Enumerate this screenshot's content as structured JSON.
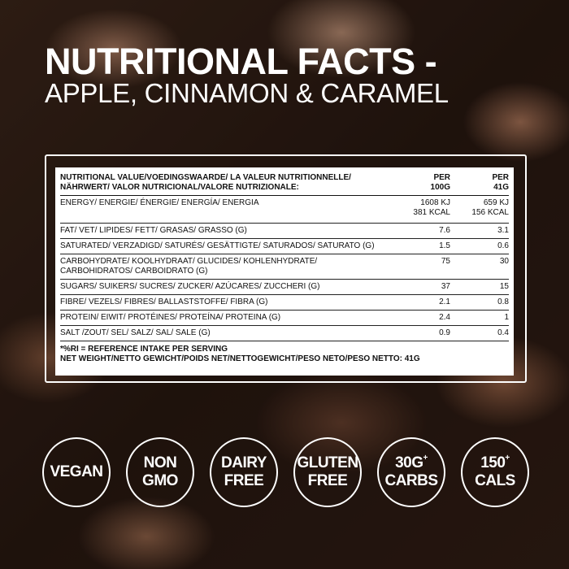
{
  "title": {
    "line1": "NUTRITIONAL FACTS -",
    "line2": "APPLE, CINNAMON & CARAMEL"
  },
  "table": {
    "header": {
      "label_1": "NUTRITIONAL VALUE/VOEDINGSWAARDE/ LA VALEUR NUTRITIONNELLE/",
      "label_2": "NÄHRWERT/ VALOR NUTRICIONAL/VALORE NUTRIZIONALE:",
      "col1_1": "PER",
      "col1_2": "100G",
      "col2_1": "PER",
      "col2_2": "41G"
    },
    "rows": [
      {
        "label": "ENERGY/ ENERGIE/ ÉNERGIE/ ENERGÍA/ ENERGIA",
        "v1": "1608 KJ",
        "v1b": "381 KCAL",
        "v2": "659 KJ",
        "v2b": "156 KCAL"
      },
      {
        "label": "FAT/ VET/ LIPIDES/ FETT/ GRASAS/ GRASSO (G)",
        "v1": "7.6",
        "v2": "3.1"
      },
      {
        "label": "SATURATED/ VERZADIGD/ SATURÉS/ GESÄTTIGTE/ SATURADOS/ SATURATO (G)",
        "v1": "1.5",
        "v2": "0.6"
      },
      {
        "label": "CARBOHYDRATE/ KOOLHYDRAAT/ GLUCIDES/ KOHLENHYDRATE/",
        "label_b": "CARBOHIDRATOS/ CARBOIDRATO (G)",
        "v1": "75",
        "v2": "30"
      },
      {
        "label": "SUGARS/ SUIKERS/ SUCRES/ ZUCKER/ AZÚCARES/ ZUCCHERI (G)",
        "v1": "37",
        "v2": "15"
      },
      {
        "label": "FIBRE/ VEZELS/ FIBRES/ BALLASTSTOFFE/ FIBRA (G)",
        "v1": "2.1",
        "v2": "0.8"
      },
      {
        "label": "PROTEIN/ EIWIT/ PROTÉINES/ PROTEÍNA/ PROTEINA (G)",
        "v1": "2.4",
        "v2": "1"
      },
      {
        "label": "SALT /ZOUT/ SEL/ SALZ/ SAL/ SALE (G)",
        "v1": "0.9",
        "v2": "0.4"
      }
    ],
    "footnote": "*%RI = REFERENCE INTAKE PER SERVING",
    "net_weight": "NET WEIGHT/NETTO GEWICHT/POIDS NET/NETTOGEWICHT/PESO NETO/PESO NETTO: 41G"
  },
  "badges": [
    {
      "l1": "VEGAN",
      "l2": "",
      "sup": ""
    },
    {
      "l1": "NON",
      "l2": "GMO",
      "sup": ""
    },
    {
      "l1": "DAIRY",
      "l2": "FREE",
      "sup": ""
    },
    {
      "l1": "GLUTEN",
      "l2": "FREE",
      "sup": ""
    },
    {
      "l1": "30G",
      "l2": "CARBS",
      "sup": "+"
    },
    {
      "l1": "150",
      "l2": "CALS",
      "sup": "+"
    }
  ]
}
